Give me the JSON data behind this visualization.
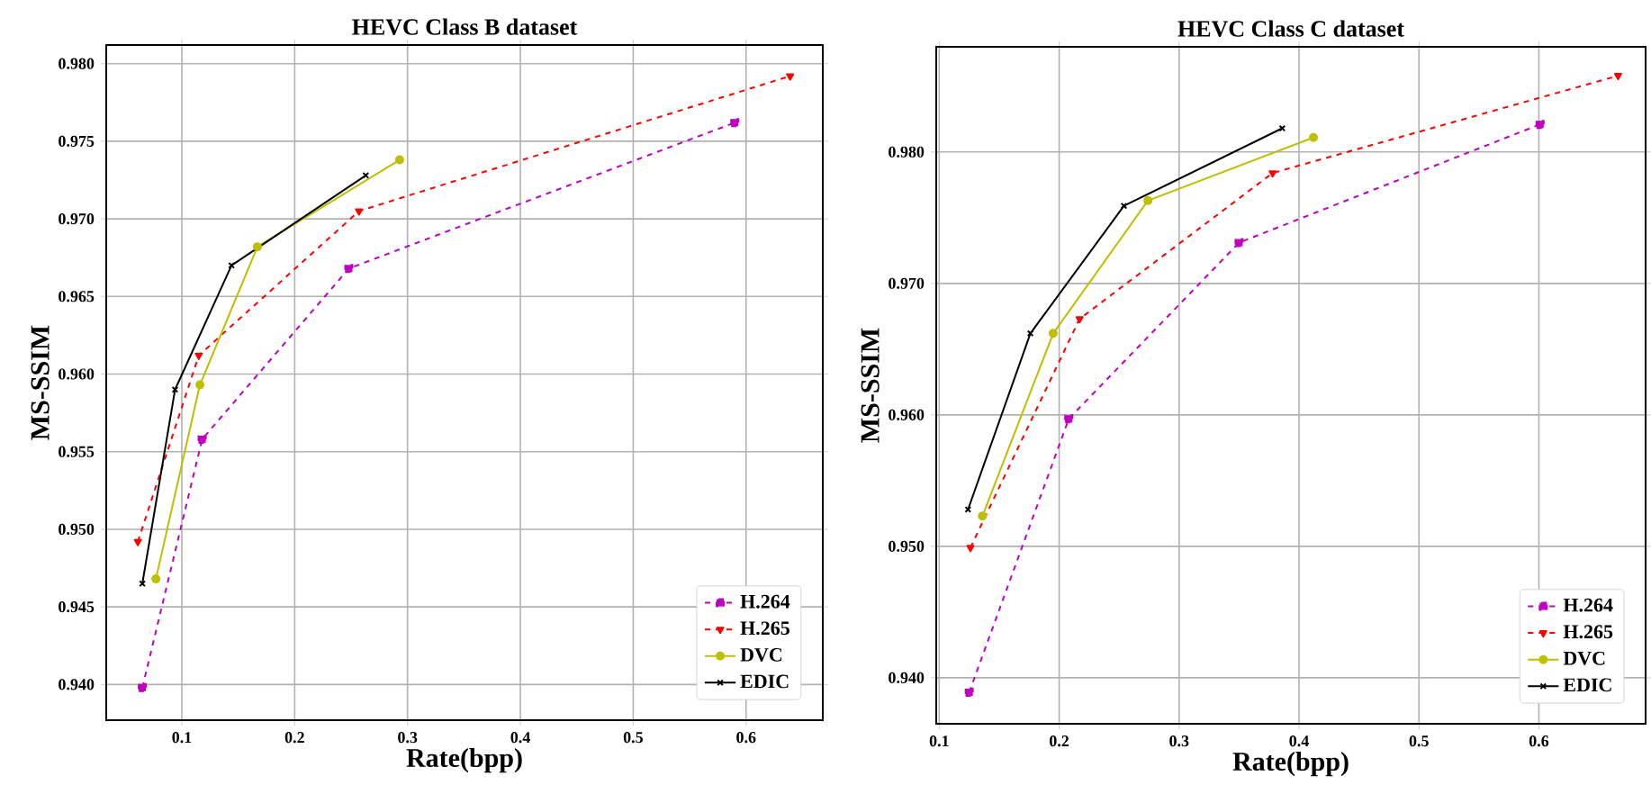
{
  "chart_data": [
    {
      "type": "line",
      "title": "HEVC Class B dataset",
      "xlabel": "Rate(bpp)",
      "ylabel": "MS-SSIM",
      "grid": true,
      "legend": "bottom right",
      "xlim": [
        0.033,
        0.668
      ],
      "ylim": [
        0.9377,
        0.9812
      ],
      "xticks": [
        0.1,
        0.2,
        0.3,
        0.4,
        0.5,
        0.6
      ],
      "yticks": [
        {
          "value": 0.94,
          "label": "0.940"
        },
        {
          "value": 0.945,
          "label": "0.945"
        },
        {
          "value": 0.95,
          "label": "0.950"
        },
        {
          "value": 0.955,
          "label": "0.955"
        },
        {
          "value": 0.96,
          "label": "0.960"
        },
        {
          "value": 0.965,
          "label": "0.965"
        },
        {
          "value": 0.97,
          "label": "0.970"
        },
        {
          "value": 0.975,
          "label": "0.975"
        },
        {
          "value": 0.98,
          "label": "0.980"
        }
      ],
      "series": [
        {
          "name": "H.264",
          "color": "#bf00bf",
          "marker": "square",
          "line_style": "dashed",
          "x": [
            0.065,
            0.118,
            0.248,
            0.59
          ],
          "values": [
            0.9398,
            0.9558,
            0.9668,
            0.9762
          ]
        },
        {
          "name": "H.265",
          "color": "#ff0000",
          "marker": "triangle",
          "line_style": "dashed",
          "x": [
            0.061,
            0.115,
            0.257,
            0.639
          ],
          "values": [
            0.9492,
            0.9612,
            0.9705,
            0.9792
          ]
        },
        {
          "name": "DVC",
          "color": "#bfbf00",
          "marker": "circle",
          "line_style": "solid",
          "x": [
            0.077,
            0.116,
            0.167,
            0.293
          ],
          "values": [
            0.9468,
            0.9593,
            0.9682,
            0.9738
          ]
        },
        {
          "name": "EDIC",
          "color": "#000000",
          "marker": "cross",
          "line_style": "solid",
          "x": [
            0.065,
            0.094,
            0.144,
            0.263
          ],
          "values": [
            0.9465,
            0.959,
            0.967,
            0.9728
          ]
        }
      ]
    },
    {
      "type": "line",
      "title": "HEVC Class C dataset",
      "xlabel": "Rate(bpp)",
      "ylabel": "MS-SSIM",
      "grid": true,
      "legend": "bottom right",
      "xlim": [
        0.0975,
        0.689
      ],
      "ylim": [
        0.9365,
        0.988
      ],
      "xticks": [
        0.1,
        0.2,
        0.3,
        0.4,
        0.5,
        0.6
      ],
      "yticks": [
        {
          "value": 0.94,
          "label": "0.940"
        },
        {
          "value": 0.95,
          "label": "0.950"
        },
        {
          "value": 0.96,
          "label": "0.960"
        },
        {
          "value": 0.97,
          "label": "0.970"
        },
        {
          "value": 0.98,
          "label": "0.980"
        }
      ],
      "series": [
        {
          "name": "H.264",
          "color": "#bf00bf",
          "marker": "square",
          "line_style": "dashed",
          "x": [
            0.125,
            0.208,
            0.35,
            0.601
          ],
          "values": [
            0.9389,
            0.9597,
            0.9731,
            0.9821
          ]
        },
        {
          "name": "H.265",
          "color": "#ff0000",
          "marker": "triangle",
          "line_style": "dashed",
          "x": [
            0.126,
            0.217,
            0.378,
            0.666
          ],
          "values": [
            0.9499,
            0.9673,
            0.9784,
            0.9858
          ]
        },
        {
          "name": "DVC",
          "color": "#bfbf00",
          "marker": "circle",
          "line_style": "solid",
          "x": [
            0.136,
            0.195,
            0.274,
            0.412
          ],
          "values": [
            0.9523,
            0.9662,
            0.9763,
            0.9811
          ]
        },
        {
          "name": "EDIC",
          "color": "#000000",
          "marker": "cross",
          "line_style": "solid",
          "x": [
            0.124,
            0.176,
            0.254,
            0.386
          ],
          "values": [
            0.9528,
            0.9662,
            0.9759,
            0.9818
          ]
        }
      ]
    }
  ]
}
